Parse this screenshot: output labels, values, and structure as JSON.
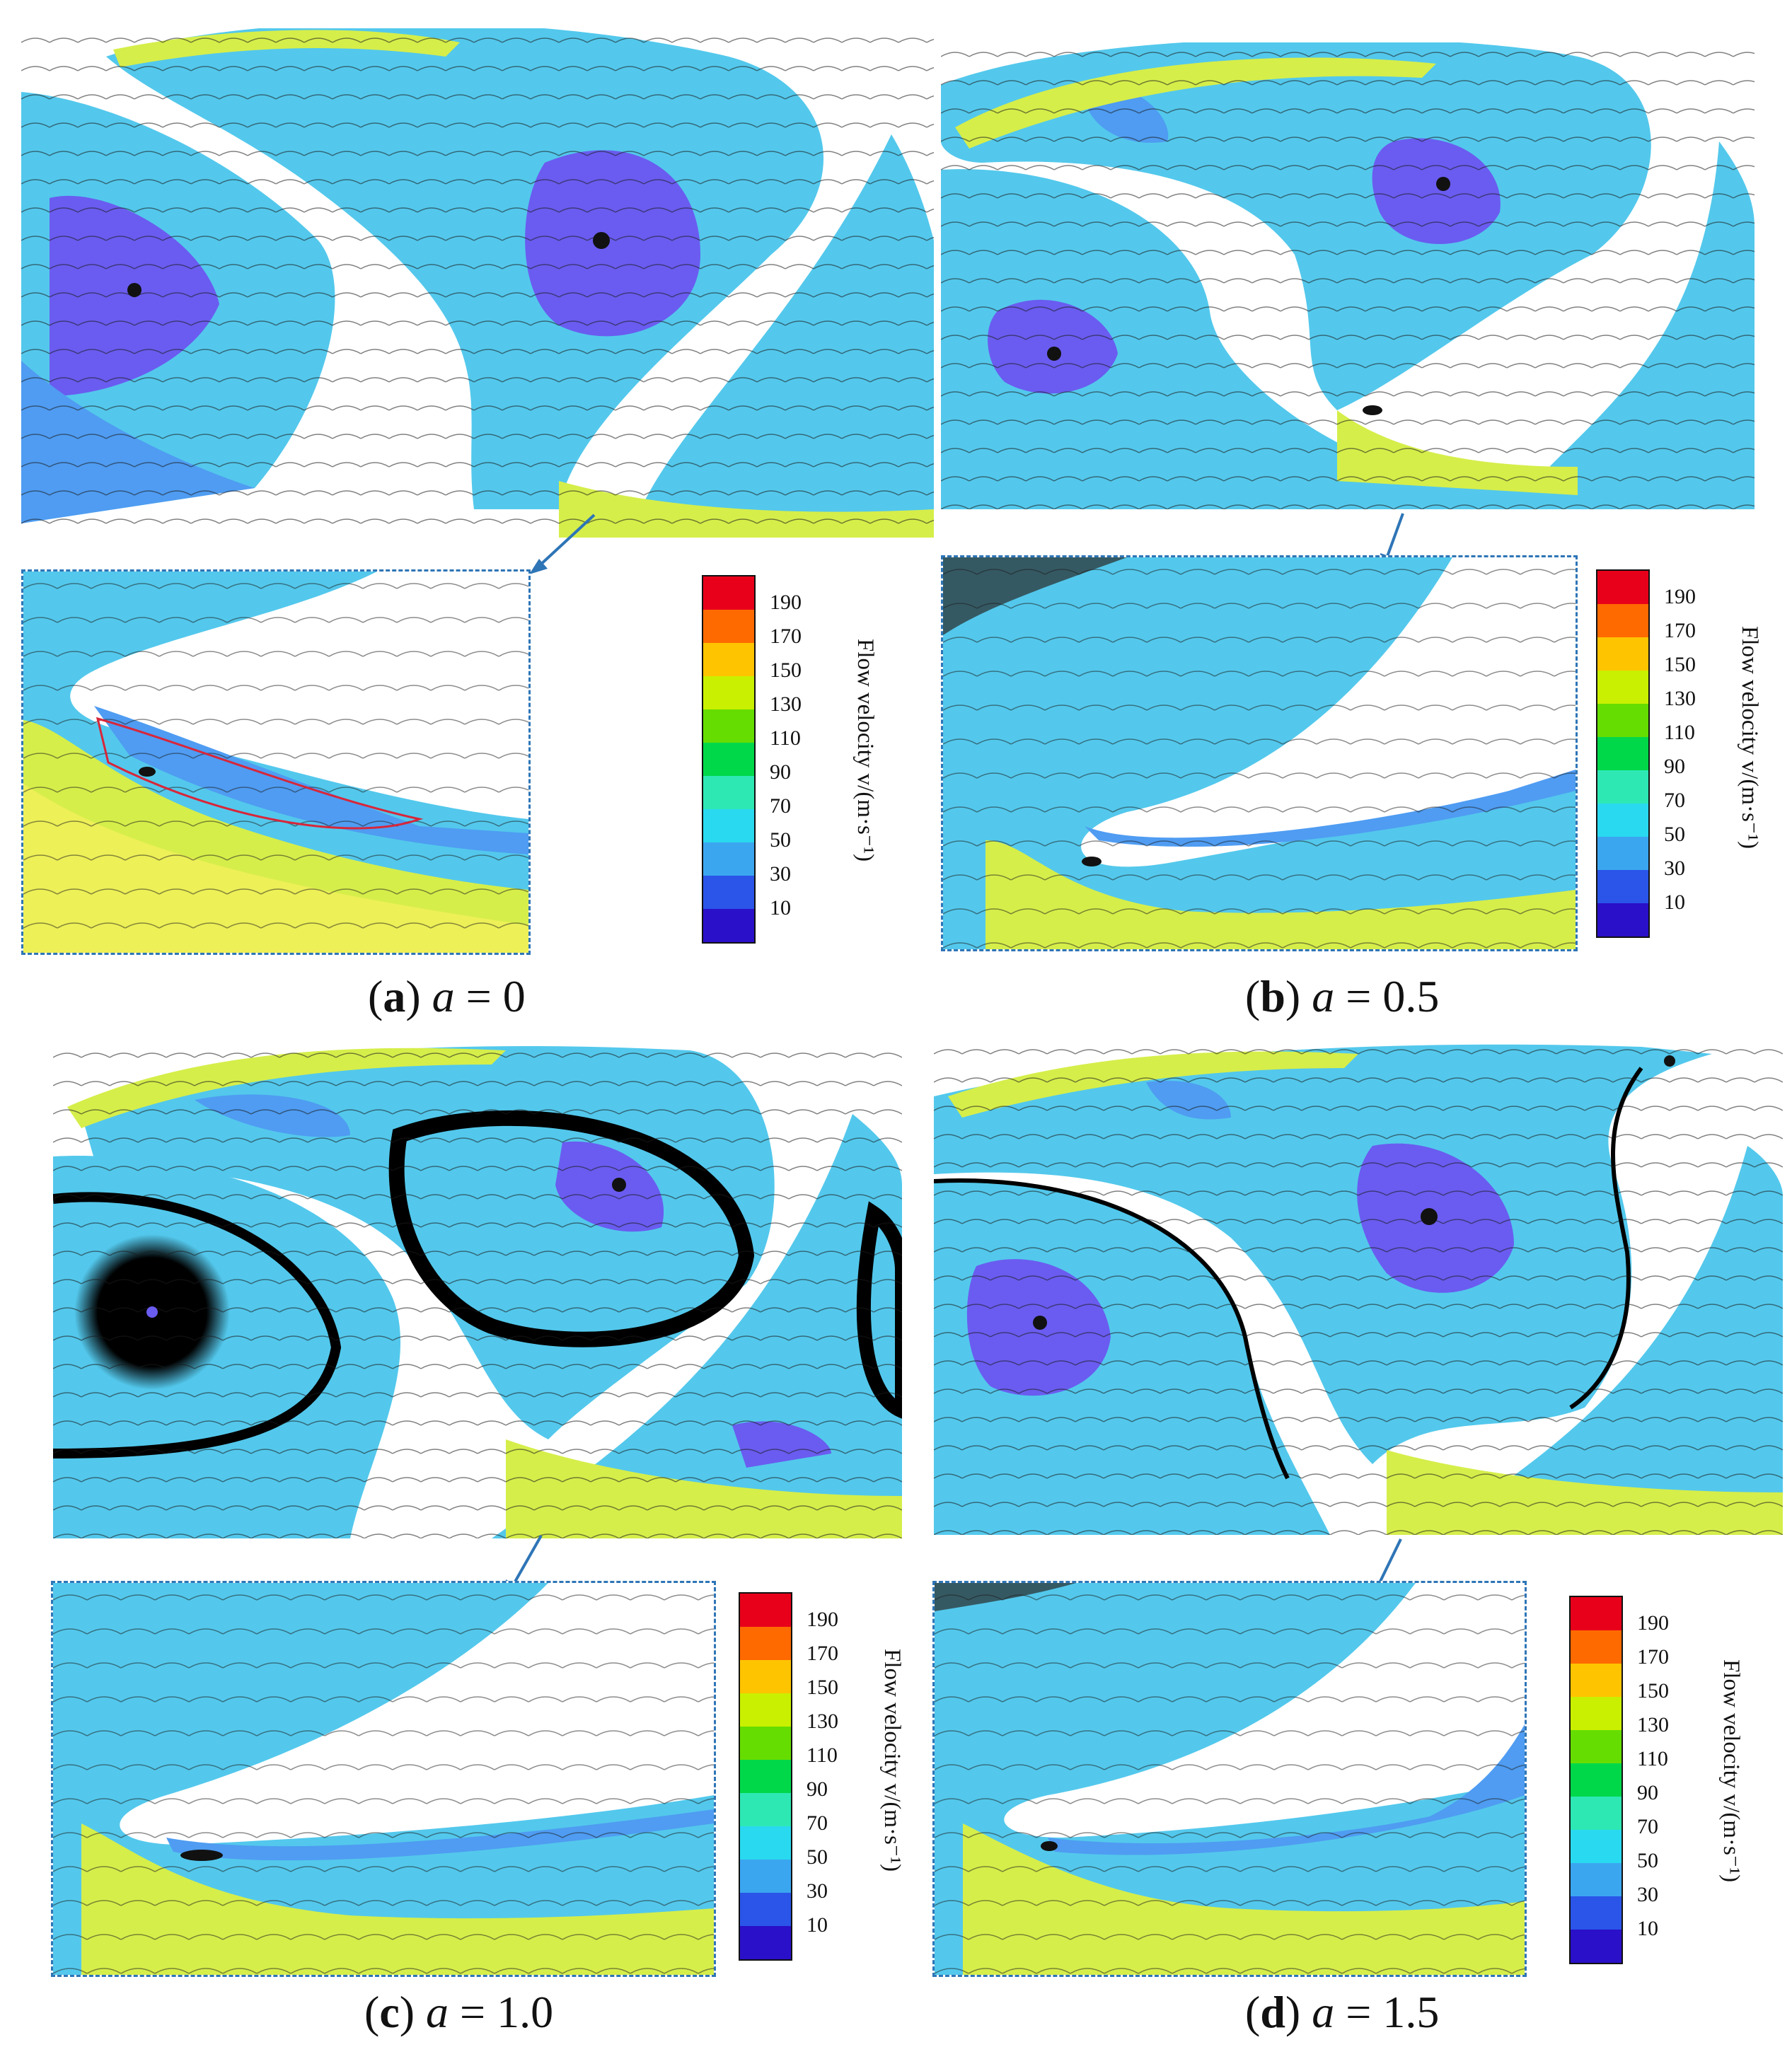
{
  "figure": {
    "panels": [
      {
        "id": "a",
        "caption_letter": "a",
        "caption_param": "a",
        "caption_eq": "=",
        "caption_value": "0"
      },
      {
        "id": "b",
        "caption_letter": "b",
        "caption_param": "a",
        "caption_eq": "=",
        "caption_value": "0.5"
      },
      {
        "id": "c",
        "caption_letter": "c",
        "caption_param": "a",
        "caption_eq": "=",
        "caption_value": "1.0"
      },
      {
        "id": "d",
        "caption_letter": "d",
        "caption_param": "a",
        "caption_eq": "=",
        "caption_value": "1.5"
      }
    ],
    "legend": {
      "title": "Flow velocity v/(m·s⁻¹)",
      "ticks": [
        "190",
        "170",
        "150",
        "130",
        "110",
        "90",
        "70",
        "50",
        "30",
        "10"
      ],
      "colors": [
        "#e8001a",
        "#ff6a00",
        "#ffc400",
        "#c9f000",
        "#66dd00",
        "#00d84a",
        "#2ee8b4",
        "#29d9f0",
        "#3ba6f0",
        "#2a55e8",
        "#2a10c8"
      ]
    },
    "palette": {
      "vortex_core": "#6a5cf0",
      "low_speed": "#4f9cf2",
      "base_flow": "#53c8ec",
      "wall_jet": "#5ce6e6",
      "high_speed": "#d6ee4a",
      "separation_line": "#d8263a",
      "frame": "#2e75b6"
    }
  }
}
